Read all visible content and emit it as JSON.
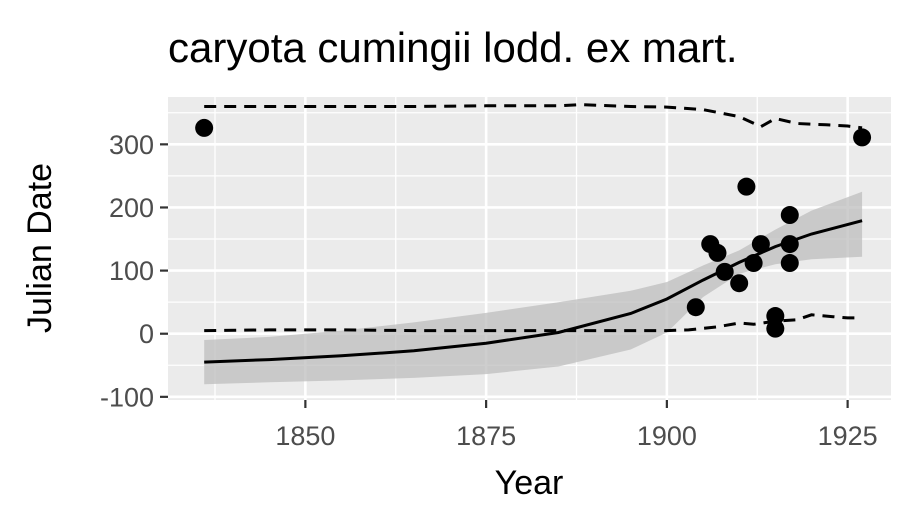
{
  "chart_data": {
    "type": "scatter",
    "title": "caryota cumingii lodd. ex mart.",
    "xlabel": "Year",
    "ylabel": "Julian Date",
    "xlim": [
      1831,
      1931
    ],
    "ylim": [
      -105,
      375
    ],
    "x_ticks": [
      1850,
      1875,
      1900,
      1925
    ],
    "x_tick_labels": [
      "1850",
      "1875",
      "1900",
      "1925"
    ],
    "y_ticks": [
      -100,
      0,
      100,
      200,
      300
    ],
    "y_tick_labels": [
      "-100",
      "0",
      "100",
      "200",
      "300"
    ],
    "grid": true,
    "legend": "none",
    "colors": {
      "panel": "#ebebeb",
      "grid": "#ffffff",
      "points": "#000000",
      "ribbon": "#bdbdbd",
      "line": "#000000"
    },
    "points": [
      {
        "x": 1836,
        "y": 326
      },
      {
        "x": 1904,
        "y": 42
      },
      {
        "x": 1906,
        "y": 142
      },
      {
        "x": 1907,
        "y": 128
      },
      {
        "x": 1908,
        "y": 98
      },
      {
        "x": 1910,
        "y": 80
      },
      {
        "x": 1911,
        "y": 233
      },
      {
        "x": 1912,
        "y": 112
      },
      {
        "x": 1913,
        "y": 142
      },
      {
        "x": 1915,
        "y": 28
      },
      {
        "x": 1915,
        "y": 8
      },
      {
        "x": 1917,
        "y": 188
      },
      {
        "x": 1917,
        "y": 142
      },
      {
        "x": 1917,
        "y": 112
      },
      {
        "x": 1927,
        "y": 311
      }
    ],
    "fit_line": {
      "x": [
        1836,
        1845,
        1855,
        1865,
        1875,
        1885,
        1895,
        1900,
        1905,
        1910,
        1915,
        1920,
        1927
      ],
      "y": [
        -45,
        -41,
        -35,
        -27,
        -15,
        2,
        32,
        55,
        85,
        113,
        138,
        158,
        179
      ]
    },
    "confidence_band": {
      "x": [
        1836,
        1845,
        1855,
        1865,
        1875,
        1885,
        1895,
        1900,
        1905,
        1910,
        1915,
        1920,
        1927
      ],
      "lower": [
        -80,
        -77,
        -74,
        -70,
        -64,
        -52,
        -25,
        2,
        58,
        95,
        110,
        118,
        122
      ],
      "upper": [
        -10,
        -5,
        5,
        18,
        33,
        50,
        68,
        82,
        108,
        132,
        165,
        195,
        225
      ]
    },
    "upper_quantile_line": {
      "x": [
        1836,
        1845,
        1855,
        1865,
        1875,
        1885,
        1888,
        1895,
        1900,
        1905,
        1910,
        1913,
        1915,
        1918,
        1922,
        1925,
        1927
      ],
      "y": [
        360,
        360,
        360,
        360,
        361,
        361,
        363,
        360,
        359,
        355,
        344,
        328,
        341,
        333,
        331,
        329,
        326
      ]
    },
    "lower_quantile_line": {
      "x": [
        1836,
        1845,
        1855,
        1865,
        1875,
        1885,
        1895,
        1900,
        1903,
        1907,
        1910,
        1912,
        1915,
        1918,
        1920,
        1923,
        1925,
        1927
      ],
      "y": [
        5,
        6,
        6,
        5,
        5,
        5,
        5,
        5,
        6,
        11,
        17,
        15,
        20,
        22,
        30,
        27,
        25,
        25
      ]
    }
  }
}
